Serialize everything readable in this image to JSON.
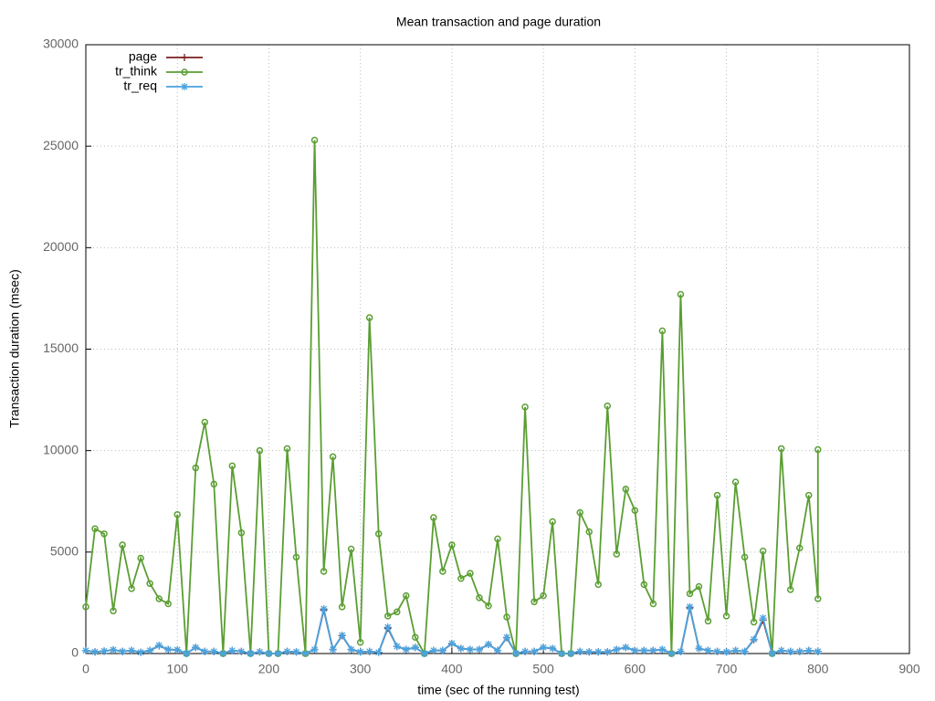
{
  "chart_data": {
    "type": "line",
    "title": "Mean transaction and page duration",
    "xlabel": "time (sec of the running test)",
    "ylabel": "Transaction duration (msec)",
    "x": [
      0,
      10,
      20,
      30,
      40,
      50,
      60,
      70,
      80,
      90,
      100,
      110,
      120,
      130,
      140,
      150,
      160,
      170,
      180,
      190,
      200,
      210,
      220,
      230,
      240,
      250,
      260,
      270,
      280,
      290,
      300,
      310,
      320,
      330,
      340,
      350,
      360,
      370,
      380,
      390,
      400,
      410,
      420,
      430,
      440,
      450,
      460,
      470,
      480,
      490,
      500,
      510,
      520,
      530,
      540,
      550,
      560,
      570,
      580,
      590,
      600,
      610,
      620,
      630,
      640,
      650,
      660,
      670,
      680,
      690,
      700,
      710,
      720,
      730,
      740,
      750,
      760,
      770,
      780,
      790,
      800,
      800
    ],
    "series": [
      {
        "name": "page",
        "color": "#7b1f1f",
        "marker": "plus",
        "values": [
          150,
          80,
          120,
          180,
          100,
          150,
          60,
          150,
          380,
          200,
          180,
          0,
          300,
          100,
          100,
          0,
          150,
          100,
          0,
          80,
          0,
          0,
          100,
          80,
          0,
          200,
          2150,
          200,
          880,
          200,
          80,
          100,
          60,
          1250,
          350,
          200,
          300,
          0,
          150,
          150,
          480,
          250,
          200,
          200,
          450,
          150,
          780,
          0,
          100,
          100,
          300,
          250,
          0,
          0,
          100,
          80,
          80,
          80,
          200,
          300,
          150,
          150,
          150,
          200,
          0,
          100,
          2250,
          250,
          150,
          100,
          80,
          150,
          100,
          680,
          1650,
          0,
          150,
          100,
          100,
          150,
          100,
          100
        ]
      },
      {
        "name": "tr_think",
        "color": "#5a9e32",
        "marker": "circle",
        "values": [
          2300,
          6150,
          5900,
          2100,
          5350,
          3200,
          4700,
          3450,
          2700,
          2450,
          6850,
          0,
          9150,
          11400,
          8350,
          0,
          9250,
          5950,
          0,
          10000,
          0,
          0,
          10100,
          4750,
          0,
          25300,
          4050,
          9700,
          2300,
          5150,
          550,
          16550,
          5900,
          1850,
          2050,
          2850,
          800,
          0,
          6700,
          4050,
          5350,
          3700,
          3950,
          2750,
          2350,
          5650,
          1800,
          0,
          12150,
          2550,
          2850,
          6500,
          0,
          0,
          6950,
          6000,
          3400,
          12200,
          4900,
          8100,
          7050,
          3400,
          2450,
          15900,
          0,
          17700,
          2950,
          3300,
          1600,
          7800,
          1850,
          8450,
          4750,
          1550,
          5050,
          0,
          10100,
          3150,
          5200,
          7800,
          2700,
          10050
        ]
      },
      {
        "name": "tr_req",
        "color": "#4aa3df",
        "marker": "star",
        "values": [
          150,
          80,
          120,
          180,
          100,
          150,
          60,
          150,
          400,
          200,
          180,
          0,
          300,
          100,
          100,
          0,
          150,
          100,
          0,
          80,
          0,
          0,
          100,
          80,
          0,
          200,
          2200,
          200,
          900,
          200,
          80,
          100,
          60,
          1300,
          350,
          200,
          300,
          0,
          150,
          150,
          500,
          250,
          200,
          200,
          450,
          150,
          800,
          0,
          100,
          100,
          300,
          250,
          0,
          0,
          100,
          80,
          80,
          80,
          200,
          300,
          150,
          150,
          150,
          200,
          0,
          100,
          2300,
          250,
          150,
          100,
          80,
          150,
          100,
          700,
          1750,
          0,
          150,
          100,
          100,
          150,
          100,
          100
        ]
      }
    ],
    "xlim": [
      0,
      900
    ],
    "xticks": [
      0,
      100,
      200,
      300,
      400,
      500,
      600,
      700,
      800,
      900
    ],
    "ylim": [
      0,
      30000
    ],
    "yticks": [
      0,
      5000,
      10000,
      15000,
      20000,
      25000,
      30000
    ],
    "grid": true,
    "legend": "top-left"
  }
}
